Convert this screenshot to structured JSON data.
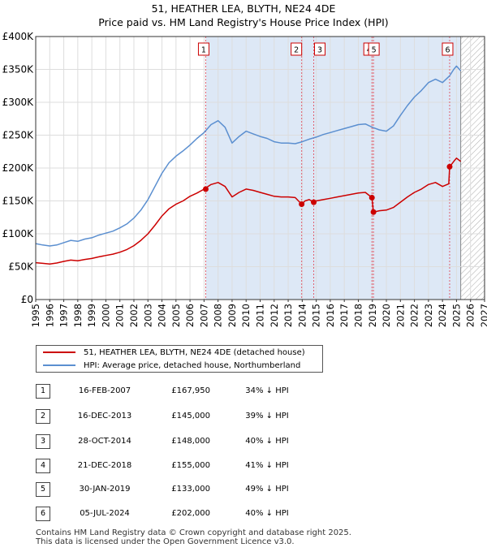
{
  "title_line1": "51, HEATHER LEA, BLYTH, NE24 4DE",
  "title_line2": "Price paid vs. HM Land Registry's House Price Index (HPI)",
  "legend": {
    "series1": "51, HEATHER LEA, BLYTH, NE24 4DE (detached house)",
    "series2": "HPI: Average price, detached house, Northumberland"
  },
  "transactions": [
    {
      "num": "1",
      "date": "16-FEB-2007",
      "price": "£167,950",
      "hpi": "34% ↓ HPI"
    },
    {
      "num": "2",
      "date": "16-DEC-2013",
      "price": "£145,000",
      "hpi": "39% ↓ HPI"
    },
    {
      "num": "3",
      "date": "28-OCT-2014",
      "price": "£148,000",
      "hpi": "40% ↓ HPI"
    },
    {
      "num": "4",
      "date": "21-DEC-2018",
      "price": "£155,000",
      "hpi": "41% ↓ HPI"
    },
    {
      "num": "5",
      "date": "30-JAN-2019",
      "price": "£133,000",
      "hpi": "49% ↓ HPI"
    },
    {
      "num": "6",
      "date": "05-JUL-2024",
      "price": "£202,000",
      "hpi": "40% ↓ HPI"
    }
  ],
  "footer_line1": "Contains HM Land Registry data © Crown copyright and database right 2025.",
  "footer_line2": "This data is licensed under the Open Government Licence v3.0.",
  "chart_data": {
    "type": "line",
    "title": "51, HEATHER LEA, BLYTH, NE24 4DE — Price paid vs. HM Land Registry's House Price Index (HPI)",
    "xlim": [
      1995,
      2027
    ],
    "ylim": [
      0,
      400000
    ],
    "x_ticks": [
      "1995",
      "1996",
      "1997",
      "1998",
      "1999",
      "2000",
      "2001",
      "2002",
      "2003",
      "2004",
      "2005",
      "2006",
      "2007",
      "2008",
      "2009",
      "2010",
      "2011",
      "2012",
      "2013",
      "2014",
      "2015",
      "2016",
      "2017",
      "2018",
      "2019",
      "2020",
      "2021",
      "2022",
      "2023",
      "2024",
      "2025",
      "2026",
      "2027"
    ],
    "y_ticks": [
      {
        "value": 0,
        "label": "£0"
      },
      {
        "value": 50000,
        "label": "£50K"
      },
      {
        "value": 100000,
        "label": "£100K"
      },
      {
        "value": 150000,
        "label": "£150K"
      },
      {
        "value": 200000,
        "label": "£200K"
      },
      {
        "value": 250000,
        "label": "£250K"
      },
      {
        "value": 300000,
        "label": "£300K"
      },
      {
        "value": 350000,
        "label": "£350K"
      },
      {
        "value": 400000,
        "label": "£400K"
      }
    ],
    "forecast_start": 2025.3,
    "colors": {
      "property": "#cc0000",
      "hpi": "#5b8fd0",
      "shade": "#dde8f6",
      "marker_line": "#e06070",
      "grid": "#dddddd"
    },
    "series": [
      {
        "name": "HPI: Average price, detached house, Northumberland",
        "points": [
          [
            1995,
            85000
          ],
          [
            1995.5,
            83000
          ],
          [
            1996,
            81500
          ],
          [
            1996.5,
            83000
          ],
          [
            1997,
            86500
          ],
          [
            1997.5,
            90000
          ],
          [
            1998,
            88500
          ],
          [
            1998.5,
            92000
          ],
          [
            1999,
            94000
          ],
          [
            1999.5,
            98000
          ],
          [
            2000,
            101000
          ],
          [
            2000.5,
            104000
          ],
          [
            2001,
            109000
          ],
          [
            2001.5,
            115000
          ],
          [
            2002,
            124000
          ],
          [
            2002.5,
            136000
          ],
          [
            2003,
            152000
          ],
          [
            2003.5,
            172000
          ],
          [
            2004,
            192000
          ],
          [
            2004.5,
            208000
          ],
          [
            2005,
            218000
          ],
          [
            2005.5,
            226000
          ],
          [
            2006,
            235000
          ],
          [
            2006.5,
            245000
          ],
          [
            2007,
            254000
          ],
          [
            2007.5,
            266000
          ],
          [
            2008,
            272000
          ],
          [
            2008.5,
            262000
          ],
          [
            2009,
            238000
          ],
          [
            2009.5,
            248000
          ],
          [
            2010,
            256000
          ],
          [
            2010.5,
            252000
          ],
          [
            2011,
            248000
          ],
          [
            2011.5,
            245000
          ],
          [
            2012,
            240000
          ],
          [
            2012.5,
            238000
          ],
          [
            2013,
            238000
          ],
          [
            2013.5,
            237000
          ],
          [
            2014,
            240000
          ],
          [
            2014.5,
            244000
          ],
          [
            2015,
            247000
          ],
          [
            2015.5,
            251000
          ],
          [
            2016,
            254000
          ],
          [
            2016.5,
            257000
          ],
          [
            2017,
            260000
          ],
          [
            2017.5,
            263000
          ],
          [
            2018,
            266000
          ],
          [
            2018.5,
            267000
          ],
          [
            2019,
            262000
          ],
          [
            2019.5,
            258000
          ],
          [
            2020,
            256000
          ],
          [
            2020.5,
            264000
          ],
          [
            2021,
            280000
          ],
          [
            2021.5,
            295000
          ],
          [
            2022,
            308000
          ],
          [
            2022.5,
            318000
          ],
          [
            2023,
            330000
          ],
          [
            2023.5,
            335000
          ],
          [
            2024,
            330000
          ],
          [
            2024.5,
            340000
          ],
          [
            2024.8,
            350000
          ],
          [
            2025,
            355000
          ],
          [
            2025.3,
            348000
          ]
        ]
      },
      {
        "name": "51, HEATHER LEA, BLYTH, NE24 4DE (detached house)",
        "points": [
          [
            1995,
            56000
          ],
          [
            1995.5,
            55000
          ],
          [
            1996,
            54000
          ],
          [
            1996.5,
            55500
          ],
          [
            1997,
            58000
          ],
          [
            1997.5,
            60000
          ],
          [
            1998,
            59000
          ],
          [
            1998.5,
            61000
          ],
          [
            1999,
            62500
          ],
          [
            1999.5,
            65000
          ],
          [
            2000,
            67000
          ],
          [
            2000.5,
            69000
          ],
          [
            2001,
            72000
          ],
          [
            2001.5,
            76000
          ],
          [
            2002,
            82000
          ],
          [
            2002.5,
            90000
          ],
          [
            2003,
            100000
          ],
          [
            2003.5,
            113000
          ],
          [
            2004,
            127000
          ],
          [
            2004.5,
            138000
          ],
          [
            2005,
            145000
          ],
          [
            2005.5,
            150000
          ],
          [
            2006,
            157000
          ],
          [
            2006.5,
            162000
          ],
          [
            2007,
            167950
          ],
          [
            2007.5,
            175000
          ],
          [
            2008,
            178000
          ],
          [
            2008.5,
            172000
          ],
          [
            2009,
            156000
          ],
          [
            2009.5,
            163000
          ],
          [
            2010,
            168000
          ],
          [
            2010.5,
            166000
          ],
          [
            2011,
            163000
          ],
          [
            2011.5,
            160000
          ],
          [
            2012,
            157000
          ],
          [
            2012.5,
            156000
          ],
          [
            2013,
            156000
          ],
          [
            2013.5,
            155000
          ],
          [
            2013.96,
            145000
          ],
          [
            2014.2,
            150000
          ],
          [
            2014.5,
            152000
          ],
          [
            2014.82,
            148000
          ],
          [
            2015,
            150000
          ],
          [
            2015.5,
            152000
          ],
          [
            2016,
            154000
          ],
          [
            2016.5,
            156000
          ],
          [
            2017,
            158000
          ],
          [
            2017.5,
            160000
          ],
          [
            2018,
            162000
          ],
          [
            2018.5,
            163000
          ],
          [
            2018.97,
            155000
          ],
          [
            2019.08,
            133000
          ],
          [
            2019.5,
            135000
          ],
          [
            2020,
            136000
          ],
          [
            2020.5,
            140000
          ],
          [
            2021,
            148000
          ],
          [
            2021.5,
            156000
          ],
          [
            2022,
            163000
          ],
          [
            2022.5,
            168000
          ],
          [
            2023,
            175000
          ],
          [
            2023.5,
            178000
          ],
          [
            2024,
            172000
          ],
          [
            2024.45,
            176000
          ],
          [
            2024.51,
            202000
          ],
          [
            2024.8,
            210000
          ],
          [
            2025,
            215000
          ],
          [
            2025.3,
            210000
          ]
        ]
      }
    ],
    "sales": [
      {
        "label": "1",
        "x": 2007.12,
        "value": 167950
      },
      {
        "label": "2",
        "x": 2013.96,
        "value": 145000
      },
      {
        "label": "3",
        "x": 2014.82,
        "value": 148000
      },
      {
        "label": "4",
        "x": 2018.97,
        "value": 155000
      },
      {
        "label": "5",
        "x": 2019.08,
        "value": 133000
      },
      {
        "label": "6",
        "x": 2024.51,
        "value": 202000
      }
    ]
  }
}
